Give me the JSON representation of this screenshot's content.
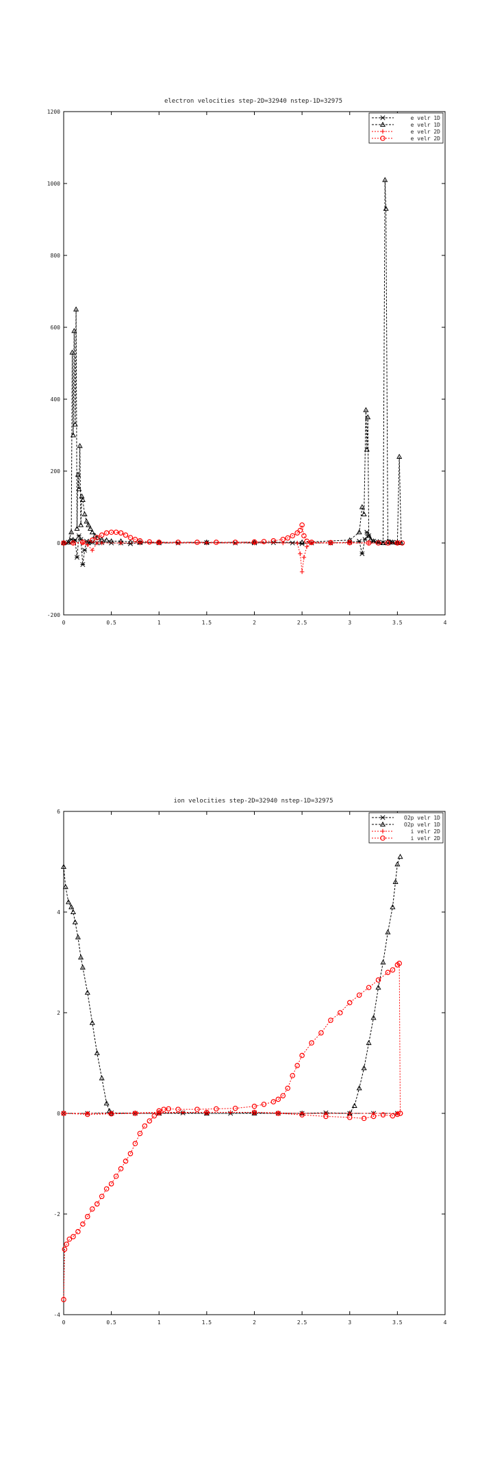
{
  "chart_data": [
    {
      "type": "line",
      "title": "electron velocities step-2D=32940 nstep-1D=32975",
      "xlabel": "",
      "ylabel": "",
      "xlim": [
        0,
        4
      ],
      "ylim": [
        -200,
        1200
      ],
      "x_ticks": [
        0,
        0.5,
        1,
        1.5,
        2,
        2.5,
        3,
        3.5,
        4
      ],
      "x_tick_labels": [
        "0",
        "0.5",
        "1",
        "1.5",
        "2",
        "2.5",
        "3",
        "3.5",
        "4"
      ],
      "y_ticks": [
        -200,
        0,
        200,
        400,
        600,
        800,
        1000,
        1200
      ],
      "y_tick_labels": [
        "-200",
        "0",
        "200",
        "400",
        "600",
        "800",
        "1000",
        "1200"
      ],
      "grid": false,
      "legend": "top-right",
      "series": [
        {
          "name": "e velr 1D",
          "color": "#000000",
          "marker": "star",
          "dash": "3,2",
          "x": [
            0.0,
            0.05,
            0.08,
            0.1,
            0.12,
            0.14,
            0.16,
            0.18,
            0.2,
            0.22,
            0.24,
            0.26,
            0.28,
            0.3,
            0.35,
            0.4,
            0.5,
            0.6,
            0.7,
            0.8,
            1.0,
            1.2,
            1.5,
            1.8,
            2.0,
            2.2,
            2.4,
            2.5,
            2.6,
            2.8,
            3.0,
            3.1,
            3.13,
            3.16,
            3.18,
            3.2,
            3.25,
            3.3,
            3.35,
            3.4,
            3.45,
            3.5,
            3.53
          ],
          "y": [
            0,
            2,
            10,
            5,
            8,
            -40,
            20,
            10,
            -60,
            -20,
            5,
            0,
            3,
            2,
            0,
            1,
            0,
            0,
            -2,
            1,
            0,
            0,
            1,
            0,
            0,
            1,
            0,
            -2,
            0,
            0,
            2,
            5,
            -30,
            10,
            30,
            20,
            5,
            2,
            1,
            0,
            2,
            1,
            0
          ]
        },
        {
          "name": "e velr 1D",
          "color": "#000000",
          "marker": "triangle",
          "dash": "3,2",
          "x": [
            0.0,
            0.05,
            0.08,
            0.09,
            0.1,
            0.11,
            0.12,
            0.13,
            0.14,
            0.15,
            0.16,
            0.17,
            0.18,
            0.19,
            0.2,
            0.22,
            0.24,
            0.26,
            0.28,
            0.3,
            0.33,
            0.36,
            0.4,
            0.45,
            0.5,
            0.6,
            0.7,
            0.8,
            1.0,
            1.5,
            2.0,
            2.5,
            3.0,
            3.1,
            3.13,
            3.15,
            3.17,
            3.18,
            3.19,
            3.2,
            3.22,
            3.25,
            3.3,
            3.35,
            3.37,
            3.38,
            3.4,
            3.42,
            3.45,
            3.5,
            3.52,
            3.54
          ],
          "y": [
            0,
            2,
            30,
            530,
            300,
            590,
            330,
            650,
            40,
            190,
            150,
            270,
            50,
            130,
            120,
            80,
            60,
            50,
            40,
            30,
            20,
            15,
            10,
            8,
            5,
            5,
            3,
            2,
            2,
            2,
            2,
            2,
            8,
            30,
            100,
            80,
            370,
            260,
            350,
            20,
            10,
            5,
            3,
            0,
            1010,
            930,
            5,
            3,
            2,
            1,
            240,
            0
          ]
        },
        {
          "name": "e velr 2D",
          "color": "#ff0000",
          "marker": "plus",
          "dash": "2,2",
          "x": [
            0.0,
            0.1,
            0.2,
            0.25,
            0.3,
            0.35,
            0.4,
            0.6,
            0.8,
            1.0,
            1.5,
            2.0,
            2.3,
            2.45,
            2.48,
            2.5,
            2.52,
            2.55,
            2.6,
            2.8,
            3.0,
            3.2,
            3.5
          ],
          "y": [
            0,
            0,
            0,
            -5,
            -20,
            0,
            0,
            0,
            0,
            0,
            0,
            0,
            0,
            0,
            -30,
            -80,
            -40,
            -10,
            0,
            0,
            0,
            0,
            0
          ]
        },
        {
          "name": "e velr 2D",
          "color": "#ff0000",
          "marker": "circle",
          "dash": "2,2",
          "x": [
            0.0,
            0.1,
            0.2,
            0.3,
            0.35,
            0.4,
            0.45,
            0.5,
            0.55,
            0.6,
            0.65,
            0.7,
            0.75,
            0.8,
            0.9,
            1.0,
            1.2,
            1.4,
            1.6,
            1.8,
            2.0,
            2.1,
            2.2,
            2.3,
            2.35,
            2.4,
            2.45,
            2.48,
            2.5,
            2.52,
            2.55,
            2.6,
            2.8,
            3.0,
            3.2,
            3.3,
            3.4,
            3.5,
            3.55
          ],
          "y": [
            0,
            0,
            2,
            8,
            15,
            22,
            28,
            30,
            30,
            28,
            22,
            15,
            10,
            6,
            3,
            2,
            2,
            2,
            2,
            2,
            3,
            4,
            6,
            10,
            14,
            20,
            28,
            35,
            50,
            20,
            5,
            2,
            1,
            1,
            0,
            0,
            0,
            0,
            0
          ]
        }
      ]
    },
    {
      "type": "line",
      "title": "ion velocities step-2D=32940 nstep-1D=32975",
      "xlabel": "",
      "ylabel": "",
      "xlim": [
        0,
        4
      ],
      "ylim": [
        -4,
        6
      ],
      "x_ticks": [
        0,
        0.5,
        1,
        1.5,
        2,
        2.5,
        3,
        3.5,
        4
      ],
      "x_tick_labels": [
        "0",
        "0.5",
        "1",
        "1.5",
        "2",
        "2.5",
        "3",
        "3.5",
        "4"
      ],
      "y_ticks": [
        -4,
        -2,
        0,
        2,
        4,
        6
      ],
      "y_tick_labels": [
        "-4",
        "-2",
        "0",
        "2",
        "4",
        "6"
      ],
      "grid": false,
      "legend": "top-right",
      "series": [
        {
          "name": "O2p velr 1D",
          "color": "#000000",
          "marker": "star",
          "dash": "3,2",
          "x": [
            0.0,
            0.25,
            0.5,
            0.75,
            1.0,
            1.25,
            1.5,
            1.75,
            2.0,
            2.25,
            2.5,
            2.75,
            3.0,
            3.25,
            3.5
          ],
          "y": [
            0.0,
            0.0,
            0.01,
            0.0,
            0.0,
            0.01,
            0.0,
            0.0,
            0.01,
            0.0,
            0.0,
            0.01,
            0.0,
            0.0,
            0.0
          ]
        },
        {
          "name": "O2p velr 1D",
          "color": "#000000",
          "marker": "triangle",
          "dash": "3,2",
          "x": [
            0.0,
            0.02,
            0.05,
            0.08,
            0.1,
            0.12,
            0.15,
            0.18,
            0.2,
            0.25,
            0.3,
            0.35,
            0.4,
            0.45,
            0.48,
            0.5,
            1.0,
            1.5,
            2.0,
            2.5,
            3.0,
            3.05,
            3.1,
            3.15,
            3.2,
            3.25,
            3.3,
            3.35,
            3.4,
            3.45,
            3.48,
            3.5,
            3.53
          ],
          "y": [
            4.9,
            4.5,
            4.2,
            4.1,
            4.0,
            3.8,
            3.5,
            3.1,
            2.9,
            2.4,
            1.8,
            1.2,
            0.7,
            0.2,
            0.05,
            0.0,
            0.0,
            0.0,
            0.0,
            0.0,
            0.0,
            0.15,
            0.5,
            0.9,
            1.4,
            1.9,
            2.5,
            3.0,
            3.6,
            4.1,
            4.6,
            4.95,
            5.1
          ]
        },
        {
          "name": "i velr 2D",
          "color": "#ff0000",
          "marker": "plus",
          "dash": "2,2",
          "x": [
            0.0,
            0.25,
            0.5,
            0.75,
            1.0,
            1.25,
            1.5,
            1.75,
            2.0,
            2.25,
            2.5,
            2.75,
            3.0,
            3.25,
            3.5
          ],
          "y": [
            0.0,
            0.0,
            0.0,
            0.01,
            0.02,
            0.02,
            0.02,
            0.02,
            0.02,
            0.01,
            0.0,
            0.0,
            0.0,
            0.0,
            0.0
          ]
        },
        {
          "name": "i velr 2D",
          "color": "#ff0000",
          "marker": "circle",
          "dash": "2,2",
          "x": [
            0.0,
            0.01,
            0.03,
            0.06,
            0.1,
            0.15,
            0.2,
            0.25,
            0.3,
            0.35,
            0.4,
            0.45,
            0.5,
            0.55,
            0.6,
            0.65,
            0.7,
            0.75,
            0.8,
            0.85,
            0.9,
            0.95,
            1.0,
            1.05,
            1.1,
            1.2,
            1.4,
            1.6,
            1.8,
            2.0,
            2.1,
            2.2,
            2.25,
            2.3,
            2.35,
            2.4,
            2.45,
            2.5,
            2.6,
            2.7,
            2.8,
            2.9,
            3.0,
            3.1,
            3.2,
            3.3,
            3.4,
            3.45,
            3.5,
            3.52,
            3.53
          ],
          "y": [
            -3.7,
            -2.7,
            -2.6,
            -2.5,
            -2.45,
            -2.35,
            -2.2,
            -2.05,
            -1.9,
            -1.8,
            -1.65,
            -1.5,
            -1.4,
            -1.25,
            -1.1,
            -0.95,
            -0.8,
            -0.6,
            -0.4,
            -0.25,
            -0.15,
            -0.05,
            0.05,
            0.08,
            0.09,
            0.08,
            0.08,
            0.09,
            0.1,
            0.14,
            0.18,
            0.23,
            0.28,
            0.35,
            0.5,
            0.75,
            0.95,
            1.15,
            1.4,
            1.6,
            1.85,
            2.0,
            2.2,
            2.35,
            2.5,
            2.65,
            2.8,
            2.85,
            2.95,
            2.98,
            0.0
          ]
        },
        {
          "name": "i velr 2D",
          "color": "#ff0000",
          "marker": "circle",
          "dash": "2,2",
          "x": [
            0.0,
            0.25,
            0.5,
            0.75,
            1.0,
            1.5,
            2.0,
            2.25,
            2.5,
            2.75,
            3.0,
            3.15,
            3.25,
            3.35,
            3.45,
            3.5,
            3.53
          ],
          "y": [
            0.0,
            -0.02,
            -0.01,
            0.0,
            0.01,
            0.02,
            0.02,
            0.0,
            -0.03,
            -0.06,
            -0.08,
            -0.1,
            -0.06,
            -0.03,
            -0.05,
            -0.02,
            0.0
          ]
        }
      ]
    }
  ]
}
